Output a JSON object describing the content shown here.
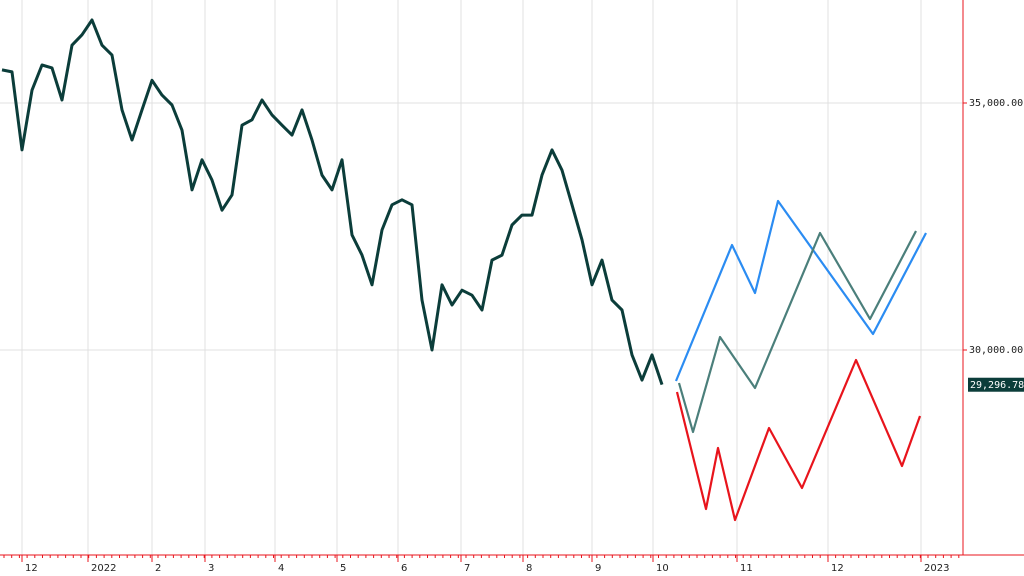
{
  "chart_data": {
    "type": "line",
    "xlim": [
      -0.2,
      96.1
    ],
    "xticks": [
      {
        "value": 2,
        "label": "12"
      },
      {
        "value": 8.6,
        "label": "2022"
      },
      {
        "value": 15,
        "label": "2"
      },
      {
        "value": 20.3,
        "label": "3"
      },
      {
        "value": 27.3,
        "label": "4"
      },
      {
        "value": 33.5,
        "label": "5"
      },
      {
        "value": 39.6,
        "label": "6"
      },
      {
        "value": 45.9,
        "label": "7"
      },
      {
        "value": 52.1,
        "label": "8"
      },
      {
        "value": 59,
        "label": "9"
      },
      {
        "value": 65.1,
        "label": "10"
      },
      {
        "value": 73.5,
        "label": "11"
      },
      {
        "value": 82.6,
        "label": "12"
      },
      {
        "value": 91.9,
        "label": "2023"
      }
    ],
    "ylim": [
      25850,
      37085
    ],
    "yticks": [
      {
        "value": 30000,
        "label": "30,000.00"
      },
      {
        "value": 35000,
        "label": "35,000.00"
      }
    ],
    "grid": true,
    "last_value": {
      "value": 29296.78,
      "label": "29,296.78"
    },
    "series": [
      {
        "color": "#0b3d3a",
        "x": [
          0,
          1,
          2,
          3,
          4,
          5,
          6,
          7,
          8,
          9,
          10,
          11,
          12,
          13,
          14,
          15,
          16,
          17,
          18,
          19,
          20,
          21,
          22,
          23,
          24,
          25,
          26,
          27,
          28,
          29,
          30,
          31,
          32,
          33,
          34,
          35,
          36,
          37,
          38,
          39,
          40,
          41,
          42,
          43,
          44,
          45,
          46,
          47,
          48,
          49,
          50,
          51,
          52,
          53,
          54,
          55,
          56,
          57,
          58,
          59,
          60,
          61,
          62,
          63,
          64,
          65,
          66
        ],
        "values": [
          35670,
          35630,
          34050,
          35260,
          35770,
          35710,
          35060,
          36170,
          36380,
          36680,
          36170,
          35970,
          34860,
          34250,
          34860,
          35460,
          35160,
          34960,
          34450,
          33240,
          33850,
          33440,
          32830,
          33140,
          34550,
          34660,
          35060,
          34760,
          34550,
          34350,
          34860,
          34250,
          33540,
          33240,
          33850,
          32330,
          31920,
          31320,
          32430,
          32940,
          33040,
          32940,
          31010,
          30000,
          31320,
          30910,
          31210,
          31110,
          30810,
          31820,
          31920,
          32530,
          32730,
          32730,
          33540,
          34050,
          33640,
          32940,
          32230,
          31320,
          31820,
          31010,
          30810,
          29900,
          29390,
          29900,
          29300
        ]
      },
      {
        "color": "#2b8cf2",
        "x": [
          67.4,
          73,
          75.3,
          77.6,
          87.1,
          92.4
        ],
        "values": [
          29372,
          32125,
          31154,
          33016,
          30324,
          32368
        ]
      },
      {
        "color": "#4b7f7b",
        "x": [
          67.7,
          69.1,
          71.8,
          75.3,
          81.8,
          86.8,
          91.4
        ],
        "values": [
          29332,
          28340,
          30263,
          29231,
          32368,
          30628,
          32409
        ]
      },
      {
        "color": "#e8141c",
        "x": [
          67.5,
          70.4,
          71.6,
          73.3,
          76.7,
          80,
          85.4,
          90,
          91.8
        ],
        "values": [
          29150,
          26781,
          28016,
          26559,
          28421,
          27206,
          29797,
          27651,
          28664
        ]
      }
    ]
  }
}
